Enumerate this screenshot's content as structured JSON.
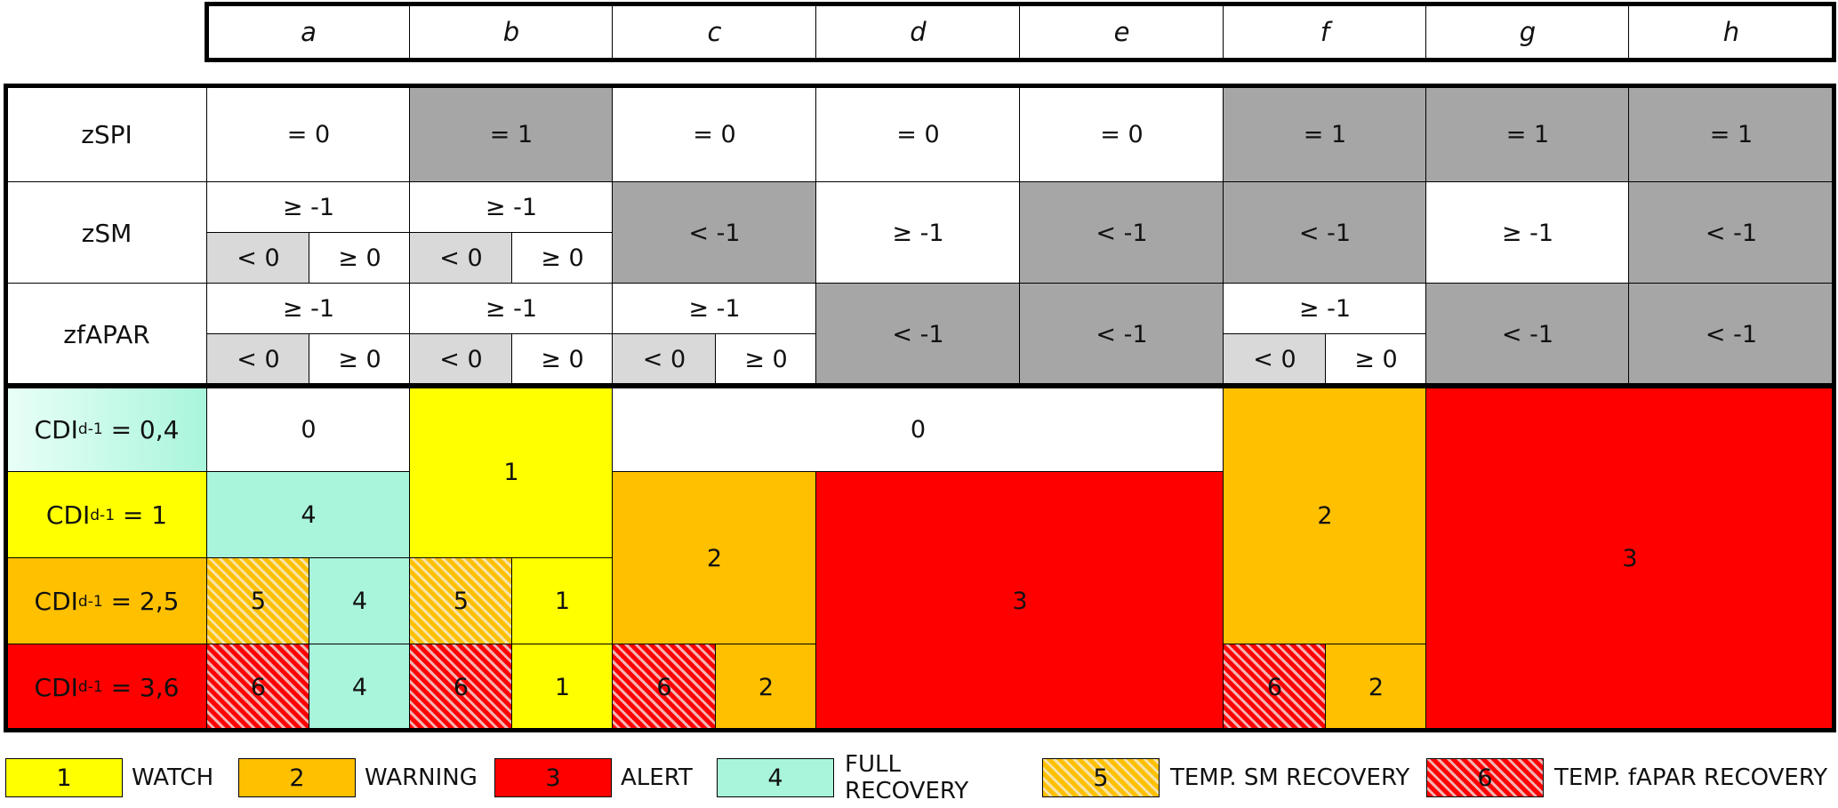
{
  "columns": [
    "a",
    "b",
    "c",
    "d",
    "e",
    "f",
    "g",
    "h"
  ],
  "rows": {
    "zspi": "zSPI",
    "zsm": "zSM",
    "zfapar": "zfAPAR"
  },
  "values": {
    "eq0": "= 0",
    "eq1": "= 1",
    "ge_m1": "≥ -1",
    "lt_m1": "< -1",
    "lt0": "< 0",
    "ge0": "≥ 0"
  },
  "cdi": {
    "base": "CDI",
    "sub": "d-1",
    "v04": "= 0,4",
    "v1": "= 1",
    "v25": "= 2,5",
    "v36": "= 3,6"
  },
  "codes": {
    "c0": "0",
    "c1": "1",
    "c2": "2",
    "c3": "3",
    "c4": "4",
    "c5": "5",
    "c6": "6"
  },
  "legend": [
    {
      "code": "1",
      "label": "WATCH",
      "color": "#ffff00"
    },
    {
      "code": "2",
      "label": "WARNING",
      "color": "#ffc000"
    },
    {
      "code": "3",
      "label": "ALERT",
      "color": "#ff0000"
    },
    {
      "code": "4",
      "label": "FULL RECOVERY",
      "color": "#a9f5dc"
    },
    {
      "code": "5",
      "label": "TEMP. SM RECOVERY",
      "color": "#ffc000 hatched"
    },
    {
      "code": "6",
      "label": "TEMP. fAPAR RECOVERY",
      "color": "#ff0000 hatched"
    }
  ]
}
